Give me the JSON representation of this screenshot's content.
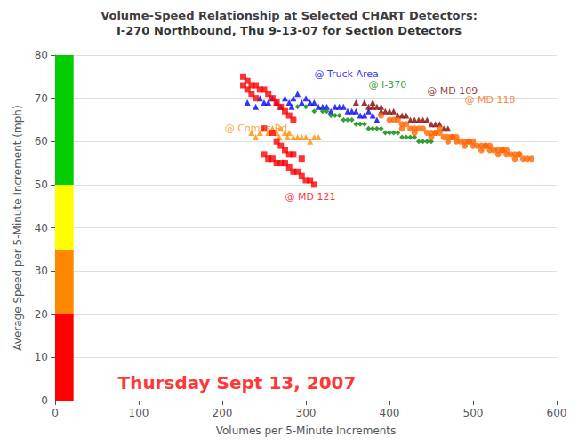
{
  "chart_data": {
    "type": "scatter",
    "title": "Volume-Speed Relationship at Selected CHART Detectors:",
    "subtitle": "I-270 Northbound, Thu 9-13-07 for Section Detectors",
    "xlabel": "Volumes per 5-Minute Increments",
    "ylabel": "Average Speed per 5-Minute Increment (mph)",
    "xlim": [
      0,
      600
    ],
    "ylim": [
      0,
      80
    ],
    "xticks": [
      0,
      100,
      200,
      300,
      400,
      500,
      600
    ],
    "yticks": [
      0,
      10,
      20,
      30,
      40,
      50,
      60,
      70,
      80
    ],
    "grid": "y",
    "bands": [
      {
        "x": [
          0,
          22
        ],
        "y": [
          0,
          20
        ],
        "color": "#FF0000"
      },
      {
        "x": [
          0,
          22
        ],
        "y": [
          20,
          35
        ],
        "color": "#FF8800"
      },
      {
        "x": [
          0,
          22
        ],
        "y": [
          35,
          50
        ],
        "color": "#FFFF00"
      },
      {
        "x": [
          0,
          22
        ],
        "y": [
          50,
          80
        ],
        "color": "#00CC00"
      }
    ],
    "annotations": [
      {
        "text": "@ Truck Area",
        "x": 310,
        "y": 74.5,
        "color": "#0000FF"
      },
      {
        "text": "@ I-370",
        "x": 375,
        "y": 72.0,
        "color": "#008800"
      },
      {
        "text": "@ MD 109",
        "x": 445,
        "y": 70.5,
        "color": "#8B0000"
      },
      {
        "text": "@ MD 118",
        "x": 490,
        "y": 68.5,
        "color": "#FF6600"
      },
      {
        "text": "@ Comus Rd",
        "x": 203,
        "y": 62.0,
        "color": "#FF8C00"
      },
      {
        "text": "@ MD 121",
        "x": 275,
        "y": 46.0,
        "color": "#FF0000"
      }
    ],
    "note": {
      "text": "Thursday Sept 13, 2007",
      "x": 75,
      "y": 2,
      "color": "#FF0000"
    },
    "series": [
      {
        "color": "#0000FF",
        "marker": "triangle",
        "values": [
          [
            230,
            69
          ],
          [
            245,
            70
          ],
          [
            250,
            69
          ],
          [
            260,
            70
          ],
          [
            265,
            69
          ],
          [
            270,
            68
          ],
          [
            275,
            70
          ],
          [
            280,
            69
          ],
          [
            285,
            70
          ],
          [
            290,
            71
          ],
          [
            295,
            69
          ],
          [
            300,
            70
          ],
          [
            305,
            69
          ],
          [
            310,
            69
          ],
          [
            315,
            68
          ],
          [
            320,
            68
          ],
          [
            325,
            68
          ],
          [
            330,
            67
          ],
          [
            335,
            68
          ],
          [
            340,
            68
          ],
          [
            345,
            68
          ],
          [
            350,
            67
          ],
          [
            355,
            67
          ],
          [
            360,
            67
          ],
          [
            365,
            66
          ],
          [
            370,
            66
          ],
          [
            375,
            67
          ],
          [
            380,
            66
          ],
          [
            385,
            65
          ],
          [
            240,
            68
          ],
          [
            255,
            69
          ],
          [
            283,
            68
          ]
        ]
      },
      {
        "color": "#008800",
        "marker": "diamond",
        "values": [
          [
            290,
            68
          ],
          [
            300,
            68
          ],
          [
            310,
            67
          ],
          [
            320,
            67
          ],
          [
            325,
            67
          ],
          [
            330,
            66
          ],
          [
            335,
            66
          ],
          [
            340,
            66
          ],
          [
            345,
            65
          ],
          [
            350,
            65
          ],
          [
            355,
            65
          ],
          [
            360,
            64
          ],
          [
            365,
            64
          ],
          [
            370,
            64
          ],
          [
            375,
            63
          ],
          [
            380,
            63
          ],
          [
            385,
            63
          ],
          [
            390,
            63
          ],
          [
            395,
            62
          ],
          [
            400,
            62
          ],
          [
            405,
            62
          ],
          [
            410,
            62
          ],
          [
            415,
            61
          ],
          [
            420,
            61
          ],
          [
            425,
            61
          ],
          [
            430,
            61
          ],
          [
            435,
            60
          ],
          [
            440,
            60
          ],
          [
            445,
            60
          ],
          [
            450,
            60
          ]
        ]
      },
      {
        "color": "#8B0000",
        "marker": "triangle",
        "values": [
          [
            360,
            69
          ],
          [
            370,
            69
          ],
          [
            375,
            68
          ],
          [
            380,
            68
          ],
          [
            385,
            68
          ],
          [
            390,
            67
          ],
          [
            395,
            67
          ],
          [
            400,
            67
          ],
          [
            405,
            67
          ],
          [
            410,
            66
          ],
          [
            415,
            66
          ],
          [
            420,
            66
          ],
          [
            425,
            65
          ],
          [
            430,
            65
          ],
          [
            435,
            65
          ],
          [
            440,
            65
          ],
          [
            445,
            65
          ],
          [
            450,
            64
          ],
          [
            455,
            64
          ],
          [
            460,
            64
          ],
          [
            465,
            63
          ],
          [
            470,
            63
          ],
          [
            380,
            69
          ],
          [
            390,
            68
          ]
        ]
      },
      {
        "color": "#FF6600",
        "marker": "circle",
        "values": [
          [
            390,
            66
          ],
          [
            400,
            65
          ],
          [
            410,
            65
          ],
          [
            415,
            64
          ],
          [
            420,
            64
          ],
          [
            425,
            63
          ],
          [
            430,
            63
          ],
          [
            435,
            63
          ],
          [
            440,
            63
          ],
          [
            445,
            62
          ],
          [
            450,
            62
          ],
          [
            455,
            62
          ],
          [
            460,
            62
          ],
          [
            465,
            61
          ],
          [
            470,
            61
          ],
          [
            475,
            61
          ],
          [
            480,
            60
          ],
          [
            485,
            60
          ],
          [
            490,
            60
          ],
          [
            495,
            60
          ],
          [
            500,
            59
          ],
          [
            505,
            59
          ],
          [
            510,
            59
          ],
          [
            515,
            59
          ],
          [
            520,
            58
          ],
          [
            525,
            58
          ],
          [
            530,
            58
          ],
          [
            535,
            58
          ],
          [
            540,
            57
          ],
          [
            545,
            57
          ],
          [
            550,
            57
          ],
          [
            555,
            57
          ],
          [
            560,
            56
          ],
          [
            565,
            56
          ],
          [
            570,
            56
          ],
          [
            405,
            65
          ],
          [
            415,
            63
          ],
          [
            430,
            62
          ],
          [
            450,
            61
          ],
          [
            470,
            60
          ],
          [
            490,
            59
          ],
          [
            510,
            58
          ],
          [
            530,
            57
          ],
          [
            550,
            56
          ],
          [
            460,
            63
          ],
          [
            480,
            61
          ],
          [
            500,
            60
          ],
          [
            520,
            59
          ],
          [
            540,
            58
          ],
          [
            455,
            62
          ],
          [
            475,
            61
          ],
          [
            495,
            60
          ],
          [
            515,
            59
          ],
          [
            535,
            58
          ],
          [
            555,
            57
          ]
        ]
      },
      {
        "color": "#FF8C00",
        "marker": "triangle",
        "values": [
          [
            235,
            62
          ],
          [
            245,
            62
          ],
          [
            255,
            62
          ],
          [
            260,
            63
          ],
          [
            265,
            62
          ],
          [
            270,
            63
          ],
          [
            275,
            62
          ],
          [
            280,
            62
          ],
          [
            285,
            61
          ],
          [
            290,
            61
          ],
          [
            295,
            61
          ],
          [
            300,
            61
          ],
          [
            305,
            60
          ],
          [
            310,
            61
          ],
          [
            315,
            61
          ],
          [
            240,
            61
          ],
          [
            250,
            63
          ],
          [
            268,
            61
          ],
          [
            278,
            61
          ]
        ]
      },
      {
        "color": "#FF0000",
        "marker": "square",
        "values": [
          [
            225,
            75
          ],
          [
            230,
            74
          ],
          [
            235,
            73
          ],
          [
            240,
            73
          ],
          [
            245,
            72
          ],
          [
            250,
            72
          ],
          [
            255,
            71
          ],
          [
            260,
            70
          ],
          [
            265,
            69
          ],
          [
            270,
            68
          ],
          [
            275,
            67
          ],
          [
            280,
            66
          ],
          [
            285,
            65
          ],
          [
            225,
            73
          ],
          [
            230,
            72
          ],
          [
            235,
            71
          ],
          [
            240,
            70
          ],
          [
            250,
            57
          ],
          [
            255,
            56
          ],
          [
            260,
            56
          ],
          [
            265,
            55
          ],
          [
            270,
            55
          ],
          [
            275,
            55
          ],
          [
            280,
            54
          ],
          [
            285,
            53
          ],
          [
            290,
            53
          ],
          [
            295,
            52
          ],
          [
            300,
            51
          ],
          [
            305,
            51
          ],
          [
            310,
            50
          ],
          [
            250,
            63
          ],
          [
            260,
            62
          ],
          [
            265,
            60
          ],
          [
            270,
            59
          ],
          [
            275,
            58
          ],
          [
            280,
            57
          ],
          [
            285,
            57
          ],
          [
            295,
            56
          ]
        ]
      }
    ]
  }
}
